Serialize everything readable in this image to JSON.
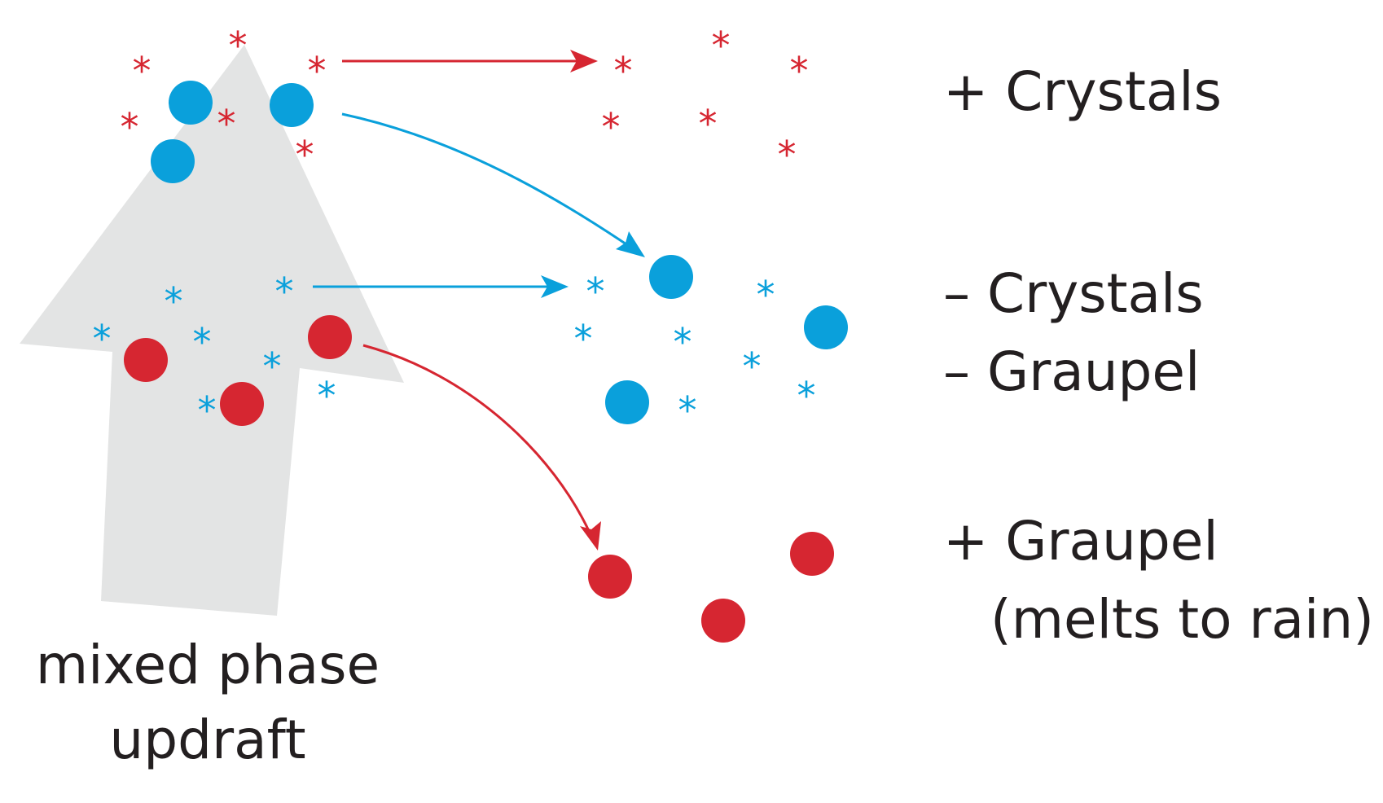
{
  "colors": {
    "red": "#d62631",
    "blue": "#0aa0db",
    "updraft": "#e3e4e4",
    "text": "#231f20"
  },
  "labels": {
    "positive_crystals": "+ Crystals",
    "negative_crystals": "– Crystals",
    "negative_graupel": "– Graupel",
    "positive_graupel": "+ Graupel",
    "melts_to_rain": "(melts to rain)",
    "updraft_line1": "mixed phase",
    "updraft_line2": "updraft"
  },
  "glyphs": {
    "crystal": "*"
  }
}
